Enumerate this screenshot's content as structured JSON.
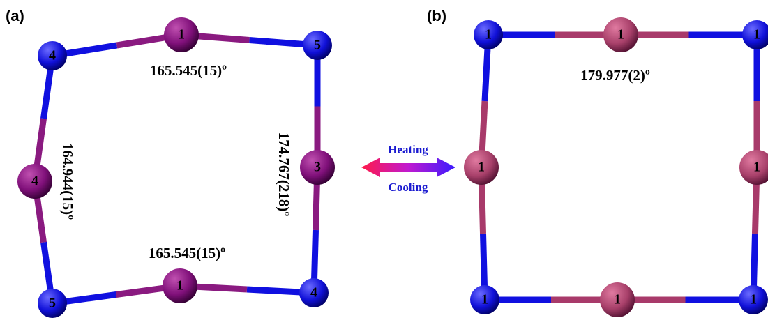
{
  "panels": [
    {
      "label": "(a)",
      "nodes": [
        "4",
        "1",
        "5",
        "4",
        "3",
        "5",
        "1",
        "4"
      ],
      "angles": [
        "165.545(15)º",
        "165.545(15)º",
        "164.944(15)º",
        "174.767(218)º"
      ]
    },
    {
      "label": "(b)",
      "nodes": [
        "1",
        "1",
        "1",
        "1",
        "1",
        "1",
        "1",
        "1"
      ],
      "angles": [
        "179.977(2)º"
      ]
    }
  ],
  "arrow": {
    "top": "Heating",
    "bottom": "Cooling"
  }
}
